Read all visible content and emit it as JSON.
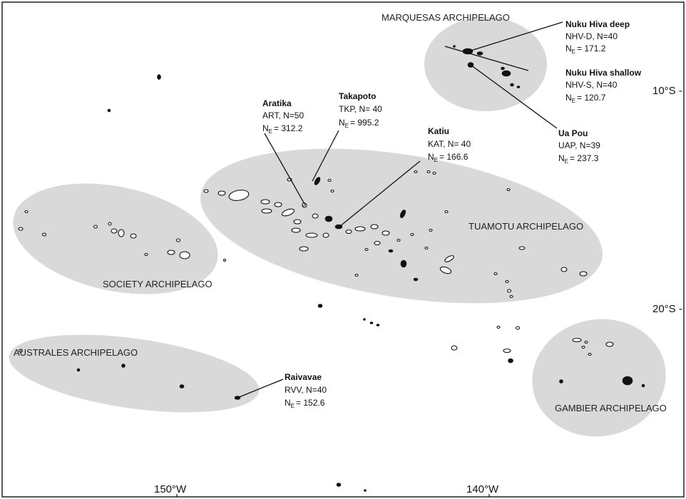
{
  "archipelagos": {
    "marquesas": "MARQUESAS ARCHIPELAGO",
    "tuamotu": "TUAMOTU ARCHIPELAGO",
    "society": "SOCIETY ARCHIPELAGO",
    "australes": "AUSTRALES ARCHIPELAGO",
    "gambier": "GAMBIER ARCHIPELAGO"
  },
  "sites": {
    "nhvd": {
      "name": "Nuku Hiva deep",
      "info": "NHV-D, N=40",
      "ne_value": "= 171.2"
    },
    "nhvs": {
      "name": "Nuku Hiva shallow",
      "info": "NHV-S, N=40",
      "ne_value": "= 120.7"
    },
    "uap": {
      "name": "Ua Pou",
      "info": "UAP, N=39",
      "ne_value": "= 237.3"
    },
    "art": {
      "name": "Aratika",
      "info": "ART, N=50",
      "ne_value": "= 312.2"
    },
    "tkp": {
      "name": "Takapoto",
      "info": "TKP, N= 40",
      "ne_value": "= 995.2"
    },
    "kat": {
      "name": "Katiu",
      "info": "KAT, N= 40",
      "ne_value": "= 166.6"
    },
    "rvv": {
      "name": "Raivavae",
      "info": "RVV, N=40",
      "ne_value": "= 152.6"
    }
  },
  "ne_symbol": {
    "main": "N",
    "sub": "E"
  },
  "axes": {
    "lat_10": "10°S -",
    "lat_20": "20°S -",
    "lon_150": "150°W",
    "lon_140": "140°W"
  },
  "colors": {
    "region_fill": "#d9d9d9",
    "island": "#111111"
  }
}
